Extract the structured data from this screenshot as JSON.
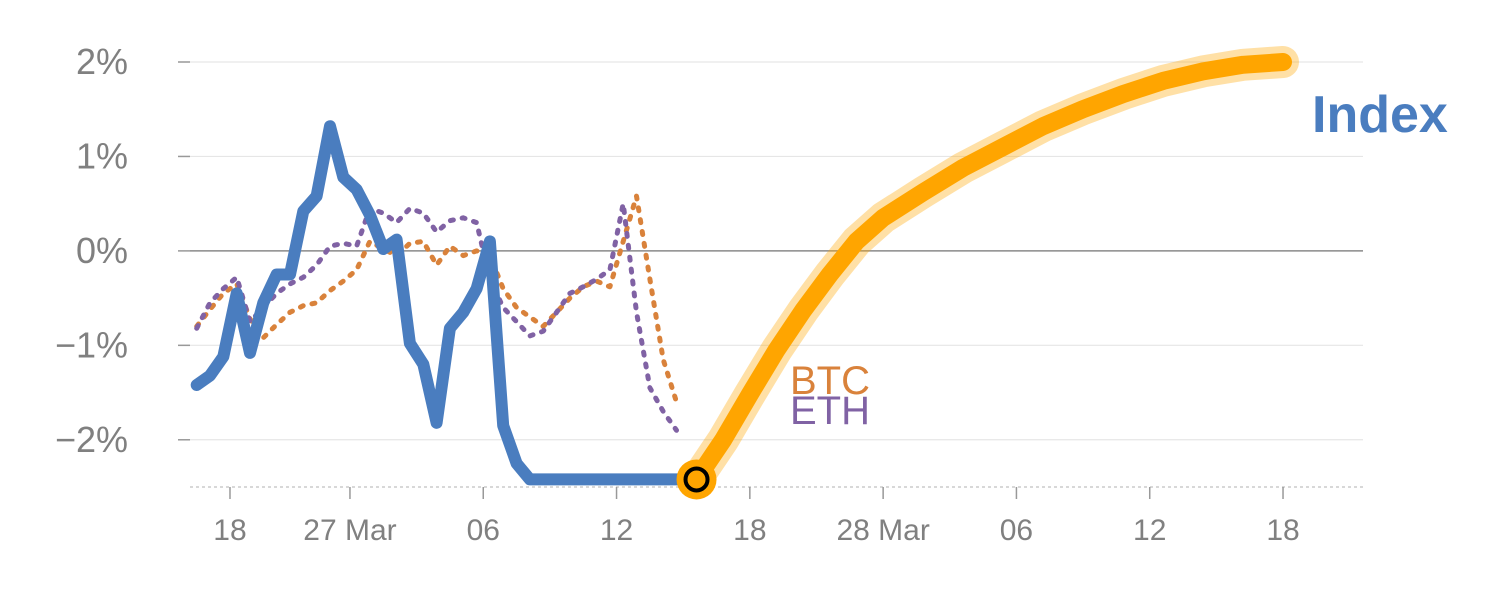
{
  "chart_data": {
    "type": "line",
    "title": "",
    "xlabel": "",
    "ylabel": "",
    "ylim": [
      -2.5,
      2.0
    ],
    "y_ticks": [
      {
        "value": 2,
        "label": "2%"
      },
      {
        "value": 1,
        "label": "1%"
      },
      {
        "value": 0,
        "label": "0%"
      },
      {
        "value": -1,
        "label": "−1%"
      },
      {
        "value": -2,
        "label": "−2%"
      }
    ],
    "x_range": [
      0,
      88
    ],
    "x_ticks": [
      {
        "value": 3,
        "label": "18"
      },
      {
        "value": 12,
        "label": "27 Mar"
      },
      {
        "value": 22,
        "label": "06"
      },
      {
        "value": 32,
        "label": "12"
      },
      {
        "value": 42,
        "label": "18"
      },
      {
        "value": 52,
        "label": "28 Mar"
      },
      {
        "value": 62,
        "label": "06"
      },
      {
        "value": 72,
        "label": "12"
      },
      {
        "value": 82,
        "label": "18"
      }
    ],
    "grid": true,
    "series": [
      {
        "name": "BTC",
        "color": "#D9823B",
        "style": "dotted",
        "x": [
          0.5,
          1.5,
          2.5,
          3.5,
          4.5,
          5.5,
          6.5,
          7.5,
          8.5,
          9.5,
          10.5,
          11.5,
          12.5,
          13.5,
          14.5,
          15.5,
          16.5,
          17.5,
          18.5,
          19.5,
          20.5,
          21.5,
          22.5,
          23.5,
          24.5,
          25.5,
          26.5,
          27.5,
          28.5,
          29.5,
          30.5,
          31.5,
          32.5,
          33.5,
          34.5,
          35.5,
          36.5
        ],
        "y": [
          -0.8,
          -0.62,
          -0.45,
          -0.35,
          -0.72,
          -0.92,
          -0.78,
          -0.65,
          -0.58,
          -0.55,
          -0.42,
          -0.32,
          -0.2,
          0.1,
          0.02,
          -0.05,
          0.08,
          0.1,
          -0.15,
          0.05,
          -0.05,
          0.0,
          -0.05,
          -0.4,
          -0.6,
          -0.7,
          -0.8,
          -0.65,
          -0.5,
          -0.38,
          -0.32,
          -0.38,
          0.1,
          0.58,
          -0.3,
          -1.15,
          -1.6
        ]
      },
      {
        "name": "ETH",
        "color": "#8062A4",
        "style": "dotted",
        "x": [
          0.5,
          1.5,
          2.5,
          3.5,
          4.5,
          5.5,
          6.5,
          7.5,
          8.5,
          9.5,
          10.5,
          11.5,
          12.5,
          13.5,
          14.5,
          15.5,
          16.5,
          17.5,
          18.5,
          19.5,
          20.5,
          21.5,
          22.5,
          23.5,
          24.5,
          25.5,
          26.5,
          27.5,
          28.5,
          29.5,
          30.5,
          31.5,
          32.5,
          33.5,
          34.5,
          35.5,
          36.5
        ],
        "y": [
          -0.82,
          -0.55,
          -0.4,
          -0.28,
          -0.75,
          -0.6,
          -0.45,
          -0.35,
          -0.28,
          -0.15,
          0.05,
          0.08,
          0.05,
          0.45,
          0.4,
          0.3,
          0.45,
          0.4,
          0.2,
          0.32,
          0.35,
          0.3,
          -0.3,
          -0.6,
          -0.75,
          -0.9,
          -0.85,
          -0.65,
          -0.45,
          -0.38,
          -0.3,
          -0.2,
          0.5,
          -0.65,
          -1.45,
          -1.7,
          -1.9
        ]
      },
      {
        "name": "Index",
        "color": "#4A7DBF",
        "style": "solid",
        "x": [
          0.5,
          1.5,
          2.5,
          3.5,
          4.5,
          5.5,
          6.5,
          7.5,
          8.5,
          9.5,
          10.5,
          11.5,
          12.5,
          13.5,
          14.5,
          15.5,
          16.5,
          17.5,
          18.5,
          19.5,
          20.5,
          21.5,
          22.5,
          23.5,
          24.5,
          25.5,
          26.5,
          27.5,
          28.5,
          29.5,
          30.5,
          31.5,
          32.5,
          33.5,
          34.5,
          35.5,
          36.5,
          37.5
        ],
        "y": [
          -1.42,
          -1.32,
          -1.12,
          -0.45,
          -1.08,
          -0.55,
          -0.25,
          -0.25,
          0.42,
          0.58,
          1.32,
          0.78,
          0.65,
          0.38,
          0.02,
          0.12,
          -0.98,
          -1.2,
          -1.82,
          -0.82,
          -0.65,
          -0.4,
          0.1,
          -1.85,
          -2.25,
          -2.42,
          -2.42,
          -2.42,
          -2.42,
          -2.42,
          -2.42,
          -2.42,
          -2.42,
          -2.42,
          -2.42,
          -2.42,
          -2.42,
          -2.42
        ]
      },
      {
        "name": "Index",
        "color": "#FFA500",
        "style": "forecast",
        "x": [
          38,
          40,
          42,
          44,
          46,
          48,
          50,
          52,
          55,
          58,
          61,
          64,
          67,
          70,
          73,
          76,
          79,
          82
        ],
        "y": [
          -2.42,
          -2.0,
          -1.52,
          -1.05,
          -0.63,
          -0.25,
          0.1,
          0.35,
          0.62,
          0.88,
          1.1,
          1.32,
          1.5,
          1.66,
          1.8,
          1.9,
          1.97,
          2.0
        ]
      }
    ],
    "highlight_point": {
      "x": 38,
      "y": -2.42
    },
    "labels": {
      "index": "Index",
      "btc": "BTC",
      "eth": "ETH"
    }
  }
}
